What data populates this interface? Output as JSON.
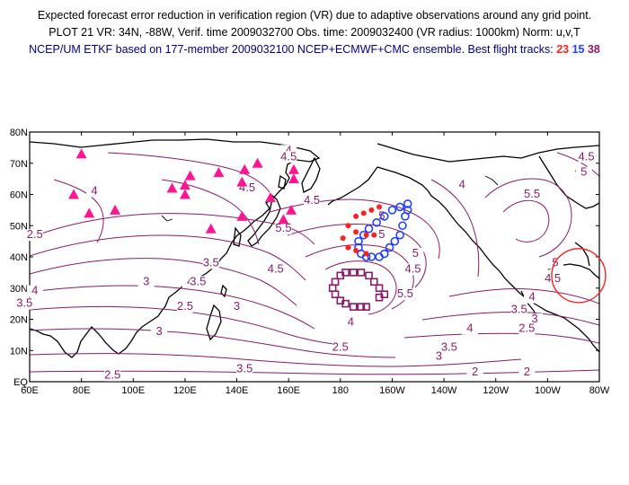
{
  "header": {
    "line1": "Expected forecast error reduction in verification region (VR) due to adaptive observations around any grid point.",
    "line2": "PLOT 21 VR: 34N, -88W, Verif. time 2009032700 Obs. time: 2009032400 (VR radius: 1000km) Norm: u,v,T",
    "line3_prefix": "NCEP/UM ETKF based on 177-member 2009032100 NCEP+ECMWF+CMC ensemble. Best flight tracks:",
    "tracks": [
      "23",
      "15",
      "38"
    ]
  },
  "colors": {
    "track_23": "#ff2020",
    "track_15": "#2040ff",
    "track_38": "#8b1a6b",
    "contour": "#8b1a6b",
    "raob_triangles": "#ff1493",
    "verification_circle": "#ff2020"
  },
  "axes": {
    "lat_labels": [
      "80N",
      "70N",
      "60N",
      "50N",
      "40N",
      "30N",
      "20N",
      "10N",
      "EQ"
    ],
    "lon_labels": [
      "60E",
      "80E",
      "100E",
      "120E",
      "140E",
      "160E",
      "180",
      "160W",
      "140W",
      "120W",
      "100W",
      "80W"
    ]
  },
  "contour_labels": [
    {
      "text": "4",
      "lon": 85,
      "lat": 60
    },
    {
      "text": "4.5",
      "lon": 144,
      "lat": 61
    },
    {
      "text": "4.5",
      "lon": 169,
      "lat": 57
    },
    {
      "text": "4",
      "lon": 160,
      "lat": 73
    },
    {
      "text": "4.5",
      "lon": 160,
      "lat": 71
    },
    {
      "text": "5.5",
      "lon": 158,
      "lat": 48
    },
    {
      "text": "3.5",
      "lon": 130,
      "lat": 37
    },
    {
      "text": "4",
      "lon": 122,
      "lat": 31
    },
    {
      "text": "3.5",
      "lon": 125,
      "lat": 31
    },
    {
      "text": "3",
      "lon": 105,
      "lat": 31
    },
    {
      "text": "2.5",
      "lon": 120,
      "lat": 23
    },
    {
      "text": "3",
      "lon": 140,
      "lat": 23
    },
    {
      "text": "3",
      "lon": 110,
      "lat": 15
    },
    {
      "text": "4",
      "lon": 62,
      "lat": 28
    },
    {
      "text": "3.5",
      "lon": 58,
      "lat": 24
    },
    {
      "text": "2.5",
      "lon": 62,
      "lat": 46
    },
    {
      "text": "2.5",
      "lon": 92,
      "lat": 1
    },
    {
      "text": "3.5",
      "lon": 143,
      "lat": 3
    },
    {
      "text": "4.5",
      "lon": 155,
      "lat": 35
    },
    {
      "text": "5",
      "lon": 196,
      "lat": 52
    },
    {
      "text": "5",
      "lon": 196,
      "lat": 46
    },
    {
      "text": "5",
      "lon": 209,
      "lat": 40
    },
    {
      "text": "4.5",
      "lon": 208,
      "lat": 35
    },
    {
      "text": "5.5",
      "lon": 205,
      "lat": 27
    },
    {
      "text": "4",
      "lon": 184,
      "lat": 18
    },
    {
      "text": "4",
      "lon": 227,
      "lat": 62
    },
    {
      "text": "5.5",
      "lon": 254,
      "lat": 59
    },
    {
      "text": "4.5",
      "lon": 275,
      "lat": 71
    },
    {
      "text": "5",
      "lon": 274,
      "lat": 66
    },
    {
      "text": "5",
      "lon": 263,
      "lat": 37
    },
    {
      "text": "4.5",
      "lon": 262,
      "lat": 32
    },
    {
      "text": "4",
      "lon": 254,
      "lat": 26
    },
    {
      "text": "3.5",
      "lon": 249,
      "lat": 22
    },
    {
      "text": "3",
      "lon": 255,
      "lat": 19
    },
    {
      "text": "2.5",
      "lon": 252,
      "lat": 16
    },
    {
      "text": "2.5",
      "lon": 180,
      "lat": 10
    },
    {
      "text": "3.5",
      "lon": 222,
      "lat": 10
    },
    {
      "text": "3",
      "lon": 218,
      "lat": 7
    },
    {
      "text": "4",
      "lon": 230,
      "lat": 16
    },
    {
      "text": "2",
      "lon": 232,
      "lat": 2
    },
    {
      "text": "2",
      "lon": 252,
      "lat": 2
    }
  ],
  "raob_triangles": [
    {
      "lon": 80,
      "lat": 73
    },
    {
      "lon": 77,
      "lat": 60
    },
    {
      "lon": 83,
      "lat": 54
    },
    {
      "lon": 93,
      "lat": 55
    },
    {
      "lon": 115,
      "lat": 62
    },
    {
      "lon": 120,
      "lat": 63
    },
    {
      "lon": 120,
      "lat": 60
    },
    {
      "lon": 122,
      "lat": 66
    },
    {
      "lon": 133,
      "lat": 67
    },
    {
      "lon": 143,
      "lat": 68
    },
    {
      "lon": 148,
      "lat": 70
    },
    {
      "lon": 162,
      "lat": 68
    },
    {
      "lon": 162,
      "lat": 65
    },
    {
      "lon": 130,
      "lat": 49
    },
    {
      "lon": 142,
      "lat": 53
    },
    {
      "lon": 142,
      "lat": 64
    },
    {
      "lon": 153,
      "lat": 59
    },
    {
      "lon": 158,
      "lat": 52
    },
    {
      "lon": 161,
      "lat": 55
    }
  ],
  "track_23": [
    {
      "lon": 186,
      "lat": 53
    },
    {
      "lon": 189,
      "lat": 54
    },
    {
      "lon": 192,
      "lat": 55
    },
    {
      "lon": 195,
      "lat": 56
    },
    {
      "lon": 183,
      "lat": 50
    },
    {
      "lon": 186,
      "lat": 48
    },
    {
      "lon": 190,
      "lat": 47
    },
    {
      "lon": 193,
      "lat": 47
    },
    {
      "lon": 181,
      "lat": 46
    },
    {
      "lon": 183,
      "lat": 43
    },
    {
      "lon": 186,
      "lat": 42
    },
    {
      "lon": 190,
      "lat": 41
    }
  ],
  "track_15": [
    {
      "lon": 206,
      "lat": 57
    },
    {
      "lon": 203,
      "lat": 56
    },
    {
      "lon": 200,
      "lat": 55
    },
    {
      "lon": 197,
      "lat": 53
    },
    {
      "lon": 194,
      "lat": 51
    },
    {
      "lon": 191,
      "lat": 49
    },
    {
      "lon": 189,
      "lat": 47
    },
    {
      "lon": 187,
      "lat": 45
    },
    {
      "lon": 187,
      "lat": 43
    },
    {
      "lon": 188,
      "lat": 41
    },
    {
      "lon": 190,
      "lat": 40
    },
    {
      "lon": 192,
      "lat": 40
    },
    {
      "lon": 195,
      "lat": 40
    },
    {
      "lon": 197,
      "lat": 41
    },
    {
      "lon": 199,
      "lat": 43
    },
    {
      "lon": 201,
      "lat": 45
    },
    {
      "lon": 203,
      "lat": 47
    },
    {
      "lon": 204,
      "lat": 50
    },
    {
      "lon": 205,
      "lat": 53
    },
    {
      "lon": 206,
      "lat": 55
    }
  ],
  "track_38": [
    {
      "lon": 180,
      "lat": 34
    },
    {
      "lon": 178,
      "lat": 32
    },
    {
      "lon": 177,
      "lat": 30
    },
    {
      "lon": 178,
      "lat": 28
    },
    {
      "lon": 180,
      "lat": 26
    },
    {
      "lon": 182,
      "lat": 25
    },
    {
      "lon": 185,
      "lat": 24
    },
    {
      "lon": 188,
      "lat": 24
    },
    {
      "lon": 190,
      "lat": 24
    },
    {
      "lon": 182,
      "lat": 35
    },
    {
      "lon": 185,
      "lat": 35
    },
    {
      "lon": 188,
      "lat": 35
    },
    {
      "lon": 191,
      "lat": 34
    },
    {
      "lon": 193,
      "lat": 32
    },
    {
      "lon": 195,
      "lat": 30
    },
    {
      "lon": 197,
      "lat": 28
    },
    {
      "lon": 195,
      "lat": 27
    }
  ],
  "verification_region": {
    "lon": 272,
    "lat": 34
  }
}
